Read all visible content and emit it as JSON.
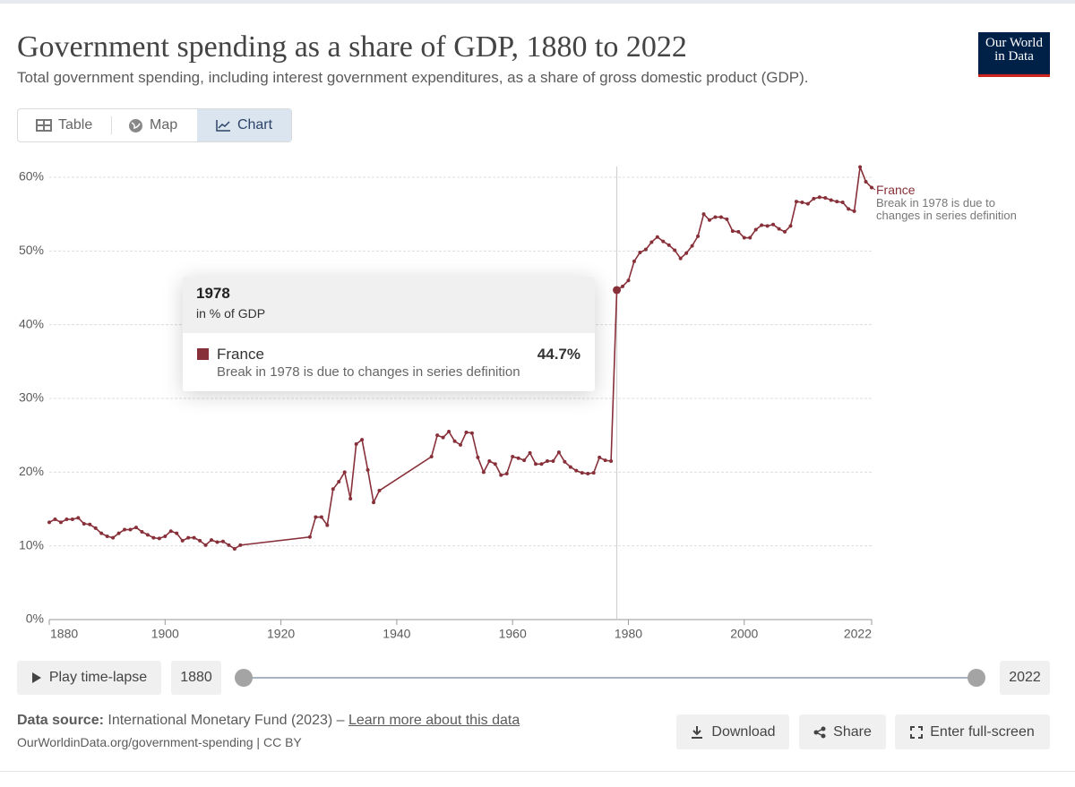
{
  "chart_data": {
    "type": "line",
    "title": "Government spending as a share of GDP, 1880 to 2022",
    "subtitle": "Total government spending, including interest government expenditures, as a share of gross domestic product (GDP).",
    "annotation": "Break in 1978 is due to changes in series definition",
    "x": [
      1880,
      1881,
      1882,
      1883,
      1884,
      1885,
      1886,
      1887,
      1888,
      1889,
      1890,
      1891,
      1892,
      1893,
      1894,
      1895,
      1896,
      1897,
      1898,
      1899,
      1900,
      1901,
      1902,
      1903,
      1904,
      1905,
      1906,
      1907,
      1908,
      1909,
      1910,
      1911,
      1912,
      1913,
      1925,
      1926,
      1927,
      1928,
      1929,
      1930,
      1931,
      1932,
      1933,
      1934,
      1935,
      1936,
      1937,
      1946,
      1947,
      1948,
      1949,
      1950,
      1951,
      1952,
      1953,
      1954,
      1955,
      1956,
      1957,
      1958,
      1959,
      1960,
      1961,
      1962,
      1963,
      1964,
      1965,
      1966,
      1967,
      1968,
      1969,
      1970,
      1971,
      1972,
      1973,
      1974,
      1975,
      1976,
      1977,
      1978,
      1979,
      1980,
      1981,
      1982,
      1983,
      1984,
      1985,
      1986,
      1987,
      1988,
      1989,
      1990,
      1991,
      1992,
      1993,
      1994,
      1995,
      1996,
      1997,
      1998,
      1999,
      2000,
      2001,
      2002,
      2003,
      2004,
      2005,
      2006,
      2007,
      2008,
      2009,
      2010,
      2011,
      2012,
      2013,
      2014,
      2015,
      2016,
      2017,
      2018,
      2019,
      2020,
      2021,
      2022
    ],
    "series": [
      {
        "name": "France",
        "color": "#883039",
        "values": [
          13.2,
          13.6,
          13.2,
          13.6,
          13.6,
          13.8,
          13.0,
          12.9,
          12.4,
          11.7,
          11.3,
          11.1,
          11.7,
          12.2,
          12.2,
          12.5,
          11.9,
          11.5,
          11.1,
          11.0,
          11.3,
          12.0,
          11.7,
          10.7,
          11.1,
          11.1,
          10.7,
          10.1,
          10.8,
          10.5,
          10.6,
          10.1,
          9.6,
          10.1,
          11.2,
          13.9,
          13.9,
          12.8,
          17.7,
          18.7,
          20.0,
          16.4,
          23.8,
          24.4,
          20.3,
          15.9,
          17.5,
          22.1,
          25.0,
          24.7,
          25.5,
          24.2,
          23.7,
          25.4,
          25.3,
          22.0,
          20.0,
          21.5,
          21.1,
          19.6,
          19.8,
          22.1,
          21.9,
          21.6,
          22.6,
          21.1,
          21.1,
          21.5,
          21.5,
          22.7,
          21.4,
          20.7,
          20.2,
          19.9,
          19.8,
          19.9,
          22.0,
          21.6,
          21.5,
          44.7,
          45.2,
          46.0,
          48.6,
          49.8,
          50.2,
          51.2,
          51.9,
          51.3,
          50.8,
          50.1,
          49.0,
          49.7,
          50.7,
          52.0,
          55.0,
          54.2,
          54.6,
          54.6,
          54.3,
          52.7,
          52.6,
          51.8,
          51.8,
          52.9,
          53.5,
          53.4,
          53.6,
          53.0,
          52.6,
          53.4,
          56.7,
          56.6,
          56.4,
          57.1,
          57.3,
          57.2,
          56.9,
          56.7,
          56.6,
          55.7,
          55.4,
          61.4,
          59.4,
          58.6
        ]
      }
    ],
    "xlim": [
      1880,
      2022
    ],
    "xticks": [
      1880,
      1900,
      1920,
      1940,
      1960,
      1980,
      2000,
      2022
    ],
    "ylim": [
      0,
      60
    ],
    "yticks": [
      {
        "value": 0,
        "label": "0%"
      },
      {
        "value": 10,
        "label": "10%"
      },
      {
        "value": 20,
        "label": "20%"
      },
      {
        "value": 30,
        "label": "30%"
      },
      {
        "value": 40,
        "label": "40%"
      },
      {
        "value": 50,
        "label": "50%"
      },
      {
        "value": 60,
        "label": "60%"
      }
    ],
    "grid": true,
    "tooltip": {
      "x": 1978,
      "unit": "in % of GDP",
      "value_label": "44.7%"
    }
  },
  "logo": [
    "Our World",
    "in Data"
  ],
  "tabs": [
    "Table",
    "Map",
    "Chart"
  ],
  "timeline": {
    "play": "Play time-lapse",
    "start": "1880",
    "end": "2022"
  },
  "footer": {
    "source_label": "Data source:",
    "source": "International Monetary Fund (2023) –",
    "link": "Learn more about this data",
    "url": "OurWorldinData.org/government-spending | CC BY"
  },
  "buttons": [
    "Download",
    "Share",
    "Enter full-screen"
  ]
}
